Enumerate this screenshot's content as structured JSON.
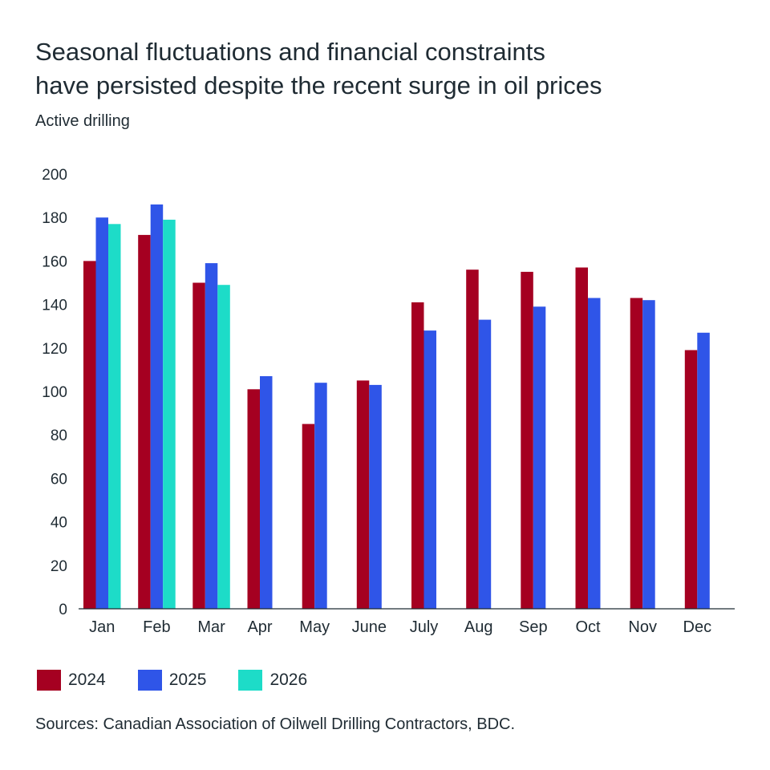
{
  "title_lines": [
    "Seasonal fluctuations and financial constraints",
    "have persisted despite the recent surge in oil prices"
  ],
  "subtitle": "Active drilling",
  "source": "Sources: Canadian Association of Oilwell Drilling Contractors, BDC.",
  "chart_data": {
    "type": "bar",
    "title": "Seasonal fluctuations and financial constraints have persisted despite the recent surge in oil prices",
    "subtitle": "Active drilling",
    "xlabel": "",
    "ylabel": "Active drilling",
    "ylim": [
      0,
      200
    ],
    "yticks": [
      0,
      20,
      40,
      60,
      80,
      100,
      120,
      140,
      160,
      180,
      200
    ],
    "grid": false,
    "legend_position": "bottom-left",
    "categories": [
      "Jan",
      "Feb",
      "Mar",
      "Apr",
      "May",
      "June",
      "July",
      "Aug",
      "Sep",
      "Oct",
      "Nov",
      "Dec"
    ],
    "series": [
      {
        "name": "2024",
        "color": "#a50021",
        "values": [
          160,
          172,
          150,
          101,
          85,
          105,
          141,
          156,
          155,
          157,
          143,
          119
        ]
      },
      {
        "name": "2025",
        "color": "#2f55e8",
        "values": [
          180,
          186,
          159,
          107,
          104,
          103,
          128,
          133,
          139,
          143,
          142,
          127
        ]
      },
      {
        "name": "2026",
        "color": "#1ddcc8",
        "values": [
          177,
          179,
          149,
          null,
          null,
          null,
          null,
          null,
          null,
          null,
          null,
          null
        ]
      }
    ]
  }
}
